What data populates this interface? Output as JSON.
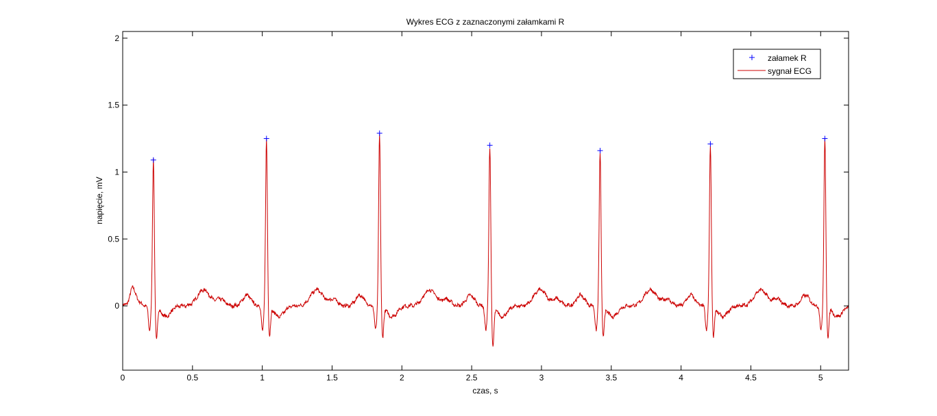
{
  "chart_data": {
    "type": "line",
    "title": "Wykres ECG z zaznaczonymi załamkami R",
    "xlabel": "czas, s",
    "ylabel": "napięcie, mV",
    "xlim": [
      0,
      5.2
    ],
    "ylim": [
      -0.48,
      2.05
    ],
    "x_ticks": [
      0,
      0.5,
      1,
      1.5,
      2,
      2.5,
      3,
      3.5,
      4,
      4.5,
      5
    ],
    "x_tick_labels": [
      "0",
      "0.5",
      "1",
      "1.5",
      "2",
      "2.5",
      "3",
      "3.5",
      "4",
      "4.5",
      "5"
    ],
    "y_ticks": [
      0,
      0.5,
      1,
      1.5,
      2
    ],
    "y_tick_labels": [
      "0",
      "0.5",
      "1",
      "1.5",
      "2"
    ],
    "grid": false,
    "legend_position": "top-right",
    "series": [
      {
        "name": "załamek R",
        "kind": "marker",
        "marker": "+",
        "color": "#0000ff",
        "x": [
          0.22,
          1.03,
          1.84,
          2.63,
          3.42,
          4.21,
          5.03
        ],
        "y": [
          1.09,
          1.25,
          1.29,
          1.2,
          1.16,
          1.21,
          1.25
        ]
      },
      {
        "name": "sygnał ECG",
        "kind": "line",
        "color": "#cc0000",
        "r_peak_times": [
          0.22,
          1.03,
          1.84,
          2.63,
          3.42,
          4.21,
          5.03
        ],
        "r_peak_values": [
          1.09,
          1.25,
          1.29,
          1.2,
          1.16,
          1.21,
          1.25
        ],
        "s_wave_values": [
          -0.24,
          -0.22,
          -0.23,
          -0.31,
          -0.23,
          -0.22,
          -0.22
        ],
        "t_wave_amplitude": 0.12,
        "p_wave_amplitude": 0.08,
        "noise_amplitude": 0.012
      }
    ]
  }
}
